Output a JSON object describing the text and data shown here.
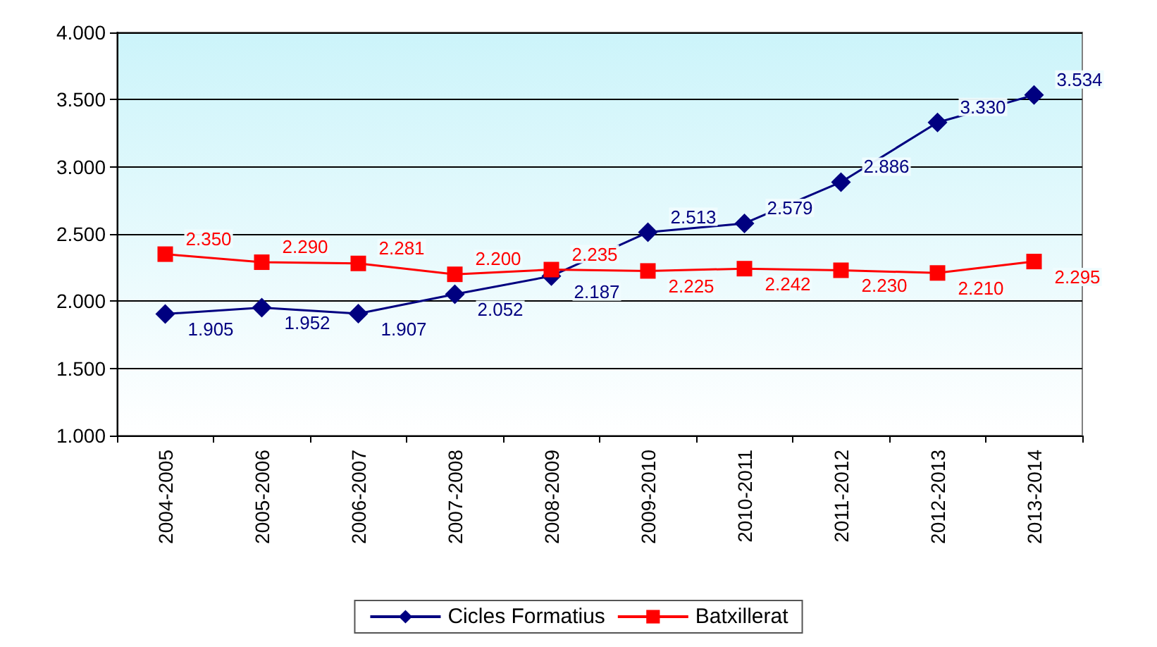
{
  "chart_data": {
    "type": "line",
    "categories": [
      "2004-2005",
      "2005-2006",
      "2006-2007",
      "2007-2008",
      "2008-2009",
      "2009-2010",
      "2010-2011",
      "2011-2012",
      "2012-2013",
      "2013-2014"
    ],
    "series": [
      {
        "name": "Cicles Formatius",
        "color": "#000080",
        "marker": "diamond",
        "values": [
          1905,
          1952,
          1907,
          2052,
          2187,
          2513,
          2579,
          2886,
          3330,
          3534
        ],
        "value_labels": [
          "1.905",
          "1.952",
          "1.907",
          "2.052",
          "2.187",
          "2.513",
          "2.579",
          "2.886",
          "3.330",
          "3.534"
        ]
      },
      {
        "name": "Batxillerat",
        "color": "#ff0000",
        "marker": "square",
        "values": [
          2350,
          2290,
          2281,
          2200,
          2235,
          2225,
          2242,
          2230,
          2210,
          2295
        ],
        "value_labels": [
          "2.350",
          "2.290",
          "2.281",
          "2.200",
          "2.235",
          "2.225",
          "2.242",
          "2.230",
          "2.210",
          "2.295"
        ]
      }
    ],
    "ylim": [
      1000,
      4000
    ],
    "yticks": [
      {
        "value": 1000,
        "label": "1.000"
      },
      {
        "value": 1500,
        "label": "1.500"
      },
      {
        "value": 2000,
        "label": "2.000"
      },
      {
        "value": 2500,
        "label": "2.500"
      },
      {
        "value": 3000,
        "label": "3.000"
      },
      {
        "value": 3500,
        "label": "3.500"
      },
      {
        "value": 4000,
        "label": "4.000"
      }
    ],
    "grid": "y",
    "legend": "bottom",
    "line_style": "solid"
  }
}
